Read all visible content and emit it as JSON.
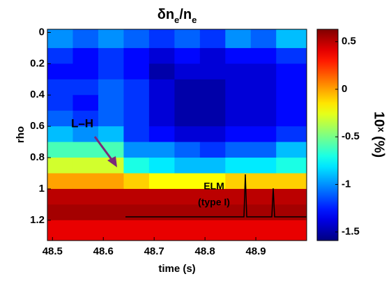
{
  "chart_data": {
    "type": "heatmap",
    "title": [
      "δn",
      "e",
      "/n",
      "e"
    ],
    "xlabel": "time (s)",
    "ylabel": "rho",
    "colorbar_label": "10ˣ (%)",
    "annotations": [
      "L–H",
      "ELM",
      "(type I)"
    ],
    "colormap": "jet",
    "time_edges": [
      48.49,
      48.54,
      48.59,
      48.64,
      48.69,
      48.74,
      48.79,
      48.84,
      48.89,
      48.94,
      49.0
    ],
    "rho_edges": [
      -0.02,
      0.1,
      0.2,
      0.3,
      0.4,
      0.5,
      0.6,
      0.7,
      0.8,
      0.9,
      1.0,
      1.1,
      1.2,
      1.33
    ],
    "z": [
      [
        -1.0,
        -1.1,
        -1.0,
        -1.1,
        -1.2,
        -1.1,
        -1.2,
        -1.0,
        -1.1,
        -0.9
      ],
      [
        -1.2,
        -1.3,
        -1.2,
        -1.3,
        -1.4,
        -1.3,
        -1.4,
        -1.3,
        -1.3,
        -1.2
      ],
      [
        -1.3,
        -1.3,
        -1.2,
        -1.3,
        -1.5,
        -1.4,
        -1.4,
        -1.4,
        -1.4,
        -1.3
      ],
      [
        -1.2,
        -1.2,
        -1.1,
        -1.2,
        -1.4,
        -1.5,
        -1.5,
        -1.4,
        -1.4,
        -1.3
      ],
      [
        -1.2,
        -1.3,
        -1.1,
        -1.2,
        -1.4,
        -1.5,
        -1.5,
        -1.4,
        -1.4,
        -1.3
      ],
      [
        -1.1,
        -1.2,
        -1.1,
        -1.2,
        -1.4,
        -1.5,
        -1.5,
        -1.4,
        -1.4,
        -1.3
      ],
      [
        -0.9,
        -1.0,
        -0.9,
        -1.2,
        -1.3,
        -1.4,
        -1.4,
        -1.3,
        -1.3,
        -1.2
      ],
      [
        -0.6,
        -0.6,
        -0.6,
        -1.0,
        -1.0,
        -1.1,
        -1.2,
        -1.1,
        -1.1,
        -0.9
      ],
      [
        -0.3,
        -0.3,
        -0.3,
        -0.7,
        -0.8,
        -0.9,
        -0.9,
        -0.8,
        -0.8,
        -0.7
      ],
      [
        0.0,
        0.0,
        0.0,
        -0.1,
        -0.2,
        -0.2,
        -0.2,
        -0.1,
        -0.1,
        -0.1
      ],
      [
        0.5,
        0.5,
        0.5,
        0.5,
        0.5,
        0.5,
        0.5,
        0.5,
        0.5,
        0.5
      ],
      [
        0.55,
        0.55,
        0.55,
        0.55,
        0.55,
        0.55,
        0.55,
        0.55,
        0.55,
        0.55
      ],
      [
        0.4,
        0.4,
        0.4,
        0.4,
        0.4,
        0.4,
        0.4,
        0.4,
        0.4,
        0.4
      ]
    ],
    "xlim": [
      48.49,
      49.0
    ],
    "xticks": [
      48.5,
      48.6,
      48.7,
      48.8,
      48.9
    ],
    "ylim": [
      -0.02,
      1.33
    ],
    "yticks": [
      0,
      0.2,
      0.4,
      0.6,
      0.8,
      1,
      1.2
    ],
    "y_inverted": true,
    "clim": [
      -1.59,
      0.63
    ],
    "cticks": [
      0.5,
      0,
      -0.5,
      -1,
      -1.5
    ]
  }
}
